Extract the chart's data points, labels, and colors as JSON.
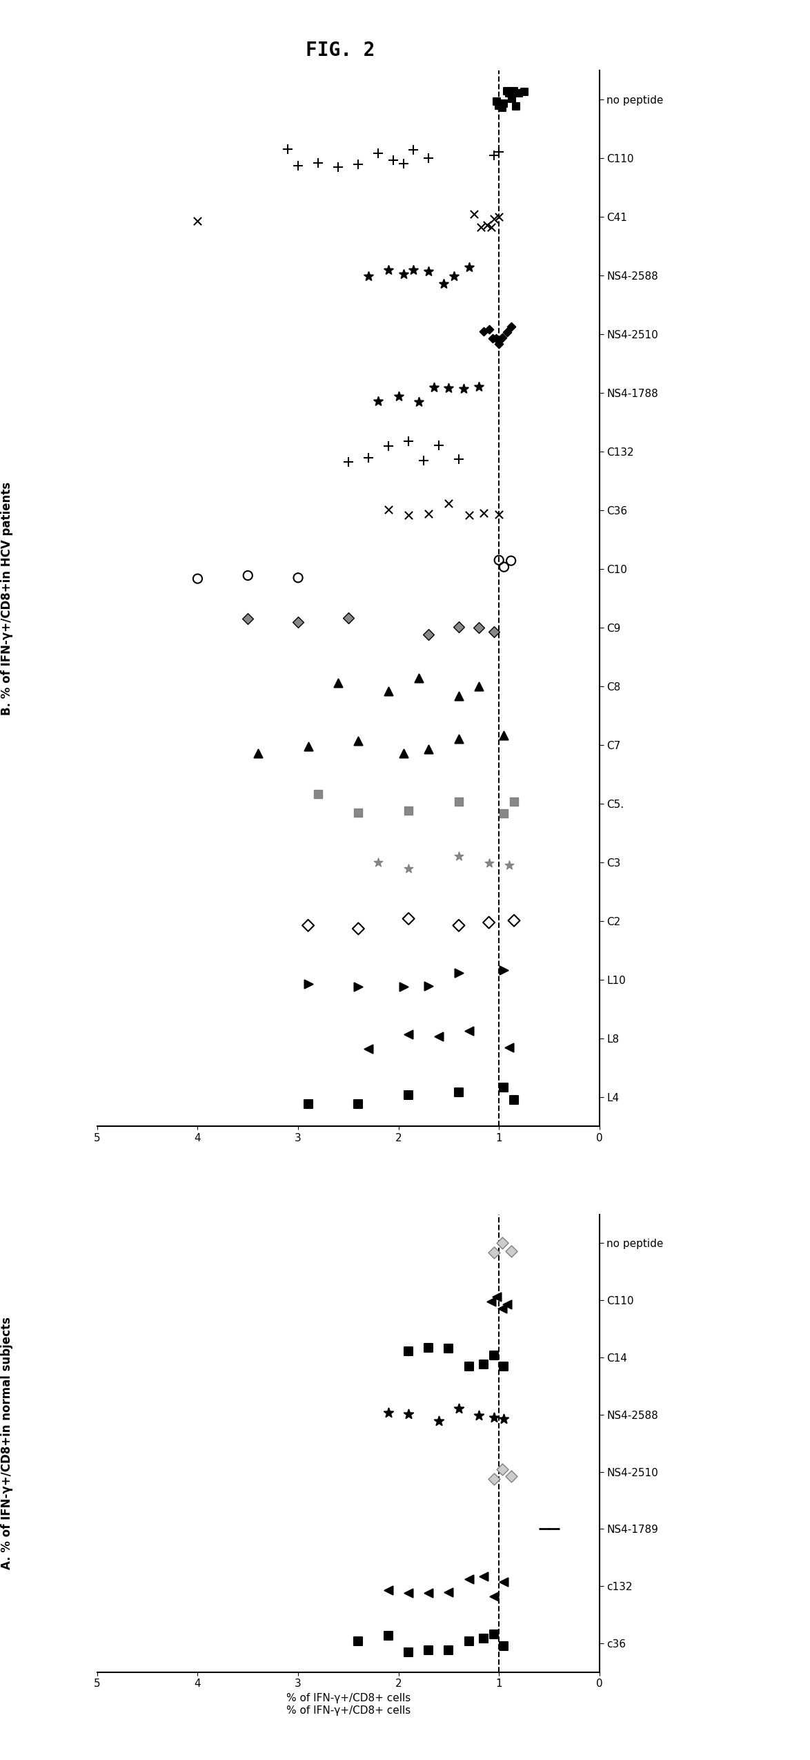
{
  "title": "FIG. 2",
  "panel_B_label": "B. % of IFN-γ+/CD8+in HCV patients",
  "panel_A_label": "A. % of IFN-γ+/CD8+in normal subjects",
  "xlabel": "% of IFN-γ+/CD8+ cells",
  "xlim": [
    0,
    5
  ],
  "dashed_line": 1.0,
  "panel_B_categories": [
    "L4",
    "L8",
    "L10",
    "C2",
    "C3",
    "C5.",
    "C7",
    "C8",
    "C9",
    "C10",
    "C36",
    "C132",
    "NS4-1788",
    "NS4-2510",
    "NS4-2588",
    "C41",
    "C110",
    "no peptide"
  ],
  "panel_A_categories": [
    "c36",
    "c132",
    "NS4-1789",
    "NS4-2510",
    "NS4-2588",
    "C14",
    "C110",
    "no peptide"
  ],
  "panel_B_plot_data": {
    "no peptide": {
      "marker": "s",
      "fc": "black",
      "ec": "black",
      "x": [
        0.75,
        0.8,
        0.83,
        0.85,
        0.87,
        0.9,
        0.92,
        0.95,
        0.97,
        1.0,
        1.02
      ],
      "size": 55
    },
    "C110": {
      "marker": "+",
      "fc": "black",
      "ec": "black",
      "x": [
        1.7,
        1.85,
        1.95,
        2.05,
        2.2,
        2.4,
        2.6,
        2.8,
        3.0,
        3.1,
        1.0,
        1.05
      ],
      "size": 90
    },
    "C41": {
      "marker": "x",
      "fc": "black",
      "ec": "black",
      "x": [
        1.0,
        1.05,
        1.08,
        1.12,
        1.18,
        1.25,
        4.0
      ],
      "size": 65
    },
    "NS4-2588": {
      "marker": "*",
      "fc": "black",
      "ec": "black",
      "x": [
        1.3,
        1.45,
        1.55,
        1.7,
        1.85,
        1.95,
        2.1,
        2.3
      ],
      "size": 90
    },
    "NS4-2510": {
      "marker": "D",
      "fc": "black",
      "ec": "black",
      "x": [
        0.88,
        0.92,
        0.97,
        1.0,
        1.03,
        1.06,
        1.1,
        1.15
      ],
      "size": 35
    },
    "NS4-1788": {
      "marker": "*",
      "fc": "black",
      "ec": "black",
      "x": [
        1.2,
        1.35,
        1.5,
        1.65,
        1.8,
        2.0,
        2.2
      ],
      "size": 90
    },
    "C132": {
      "marker": "+",
      "fc": "black",
      "ec": "black",
      "x": [
        1.4,
        1.6,
        1.75,
        1.9,
        2.1,
        2.3,
        2.5
      ],
      "size": 90
    },
    "C36": {
      "marker": "x",
      "fc": "black",
      "ec": "black",
      "x": [
        1.0,
        1.15,
        1.3,
        1.5,
        1.7,
        1.9,
        2.1
      ],
      "size": 65
    },
    "C10": {
      "marker": "o",
      "fc": "none",
      "ec": "black",
      "x": [
        0.88,
        0.95,
        1.0,
        3.0,
        3.5,
        4.0
      ],
      "size": 90
    },
    "C9": {
      "marker": "D",
      "fc": "gray",
      "ec": "black",
      "x": [
        1.05,
        1.2,
        1.4,
        1.7,
        2.5,
        3.0,
        3.5
      ],
      "size": 65
    },
    "C8": {
      "marker": "^",
      "fc": "black",
      "ec": "black",
      "x": [
        1.2,
        1.4,
        1.8,
        2.1,
        2.6
      ],
      "size": 75
    },
    "C7": {
      "marker": "^",
      "fc": "black",
      "ec": "black",
      "x": [
        0.95,
        1.4,
        1.7,
        1.95,
        2.4,
        2.9,
        3.4
      ],
      "size": 75
    },
    "C5.": {
      "marker": "s",
      "fc": "gray",
      "ec": "gray",
      "x": [
        0.85,
        0.95,
        1.4,
        1.9,
        2.4,
        2.8
      ],
      "size": 75
    },
    "C3": {
      "marker": "*",
      "fc": "gray",
      "ec": "gray",
      "x": [
        0.9,
        1.1,
        1.4,
        1.9,
        2.2
      ],
      "size": 90
    },
    "C2": {
      "marker": "D",
      "fc": "none",
      "ec": "black",
      "x": [
        0.85,
        1.1,
        1.4,
        1.9,
        2.4,
        2.9
      ],
      "size": 75
    },
    "L10": {
      "marker": ">",
      "fc": "black",
      "ec": "black",
      "x": [
        0.95,
        1.4,
        1.7,
        1.95,
        2.4,
        2.9
      ],
      "size": 75
    },
    "L8": {
      "marker": "<",
      "fc": "black",
      "ec": "black",
      "x": [
        0.9,
        1.3,
        1.6,
        1.9,
        2.3
      ],
      "size": 75
    },
    "L4": {
      "marker": "s",
      "fc": "black",
      "ec": "black",
      "x": [
        0.85,
        0.95,
        1.4,
        1.9,
        2.4,
        2.9
      ],
      "size": 75
    }
  },
  "panel_A_plot_data": {
    "no peptide": {
      "marker": "D",
      "fc": "lightgray",
      "ec": "gray",
      "x": [
        0.88,
        0.97,
        1.05
      ],
      "size": 75
    },
    "C110": {
      "marker": "<",
      "fc": "black",
      "ec": "black",
      "x": [
        0.92,
        0.97,
        1.02,
        1.08
      ],
      "size": 75
    },
    "C14": {
      "marker": "s",
      "fc": "black",
      "ec": "black",
      "x": [
        0.95,
        1.05,
        1.15,
        1.3,
        1.5,
        1.7,
        1.9
      ],
      "size": 75
    },
    "NS4-2588": {
      "marker": "*",
      "fc": "black",
      "ec": "black",
      "x": [
        0.95,
        1.05,
        1.2,
        1.4,
        1.6,
        1.9,
        2.1
      ],
      "size": 100
    },
    "NS4-2510": {
      "marker": "D",
      "fc": "lightgray",
      "ec": "gray",
      "x": [
        0.88,
        0.97,
        1.05
      ],
      "size": 75
    },
    "NS4-1789": {
      "marker": "_",
      "fc": "black",
      "ec": "black",
      "x": [
        0.45,
        0.55
      ],
      "size": 100
    },
    "c132": {
      "marker": "<",
      "fc": "black",
      "ec": "black",
      "x": [
        0.95,
        1.05,
        1.15,
        1.3,
        1.5,
        1.7,
        1.9,
        2.1
      ],
      "size": 75
    },
    "c36": {
      "marker": "s",
      "fc": "black",
      "ec": "black",
      "x": [
        0.95,
        1.05,
        1.15,
        1.3,
        1.5,
        1.7,
        1.9,
        2.1,
        2.4
      ],
      "size": 75
    }
  }
}
